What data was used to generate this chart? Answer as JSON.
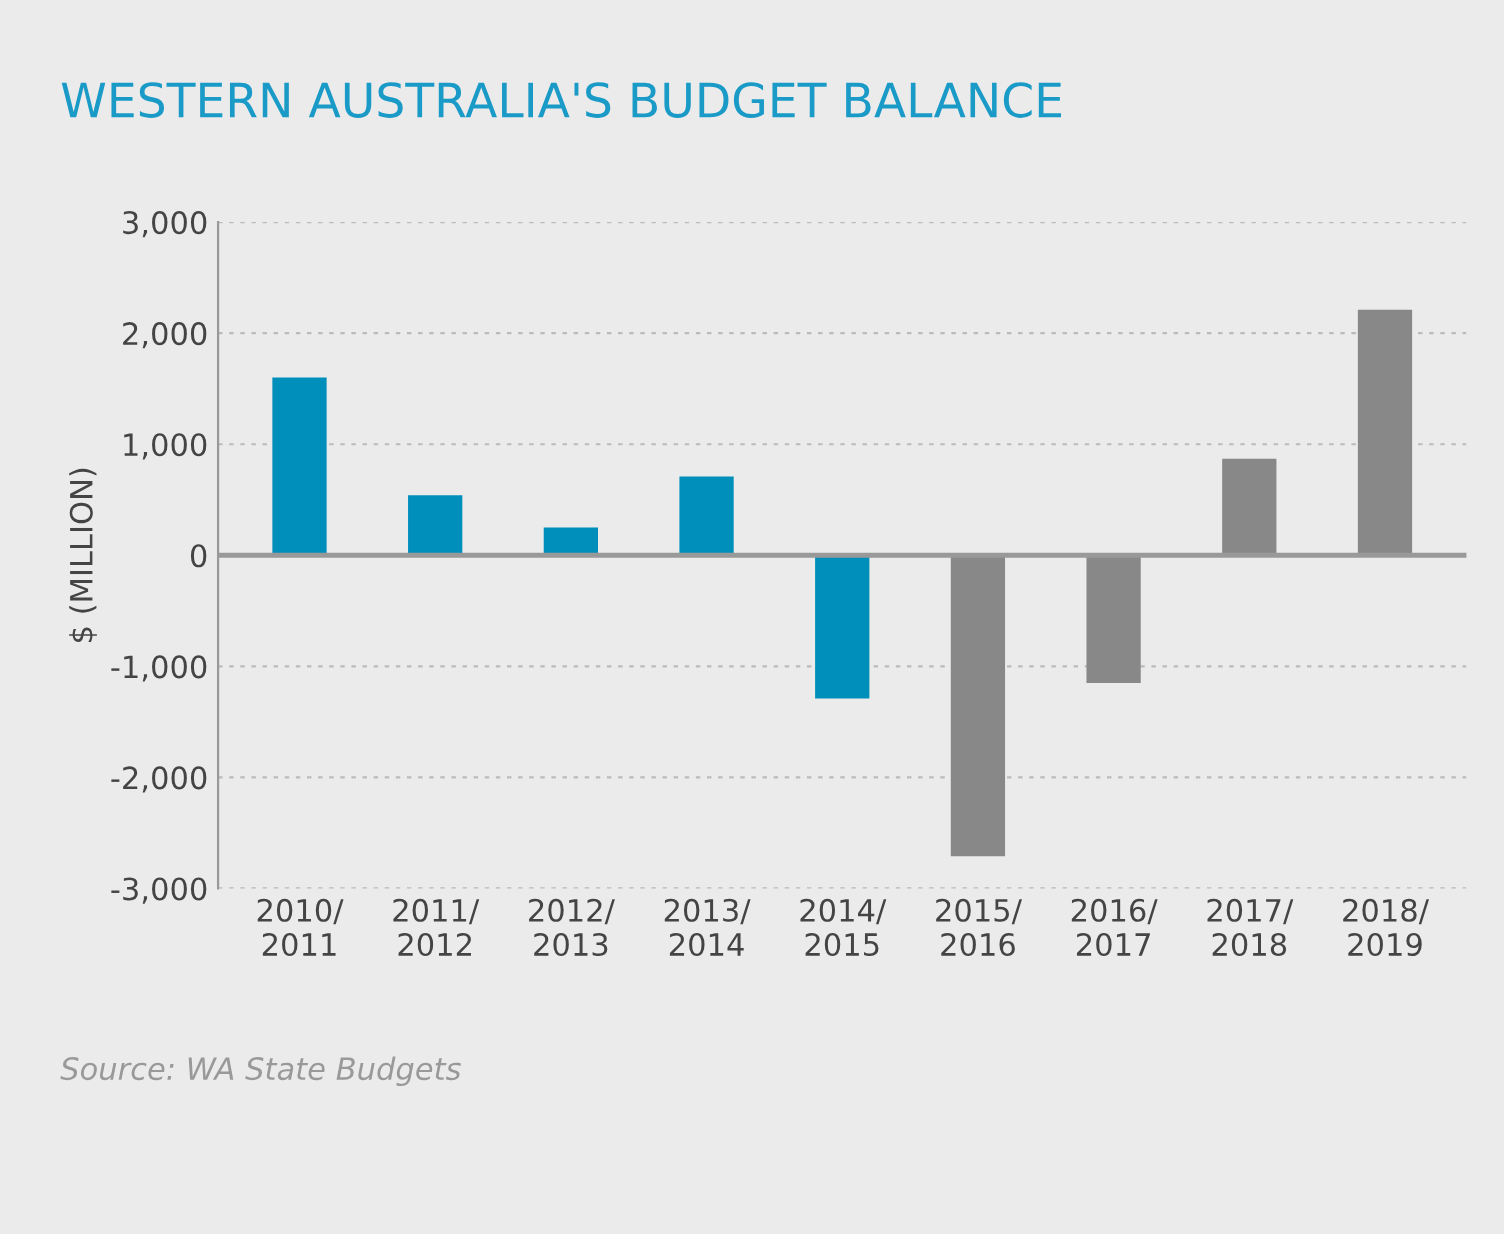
{
  "chart_data": {
    "type": "bar",
    "title": "WESTERN AUSTRALIA'S BUDGET BALANCE",
    "ylabel": "$ (MILLION)",
    "categories": [
      "2010/\n2011",
      "2011/\n2012",
      "2012/\n2013",
      "2013/\n2014",
      "2014/\n2015",
      "2015/\n2016",
      "2016/\n2017",
      "2017/\n2018",
      "2018/\n2019"
    ],
    "values": [
      1600,
      540,
      250,
      710,
      -1290,
      -2710,
      -1150,
      870,
      2210
    ],
    "colors": [
      "#008fba",
      "#008fba",
      "#008fba",
      "#008fba",
      "#008fba",
      "#888888",
      "#888888",
      "#888888",
      "#888888"
    ],
    "ylim": [
      -3000,
      3000
    ],
    "yticks": [
      {
        "value": -3000,
        "label": "-3,000"
      },
      {
        "value": -2000,
        "label": "-2,000"
      },
      {
        "value": -1000,
        "label": "-1,000"
      },
      0,
      {
        "value": 1000,
        "label": "1,000"
      },
      {
        "value": 2000,
        "label": "2,000"
      },
      {
        "value": 3000,
        "label": "3,000"
      }
    ],
    "grid": "y",
    "annotations": [
      "Source: WA State Budgets"
    ]
  }
}
